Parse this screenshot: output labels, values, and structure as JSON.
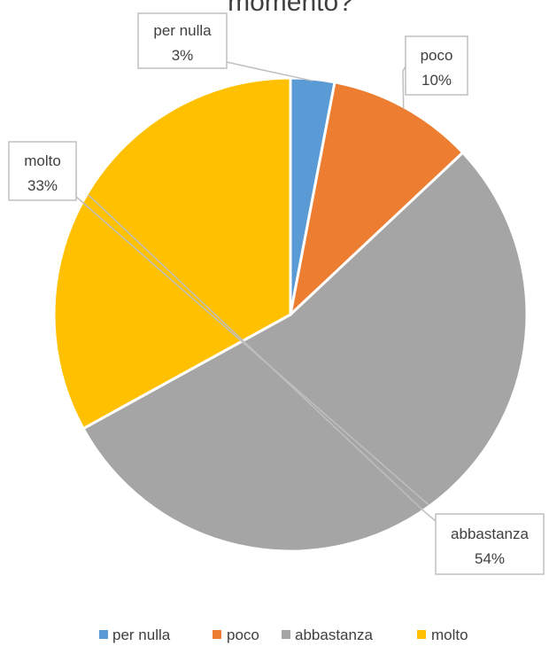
{
  "chart_data": {
    "type": "pie",
    "title": "momento?",
    "slices": [
      {
        "label": "per nulla",
        "value": 3,
        "value_label": "3%",
        "color": "#5B9BD5"
      },
      {
        "label": "poco",
        "value": 10,
        "value_label": "10%",
        "color": "#ED7D31"
      },
      {
        "label": "abbastanza",
        "value": 54,
        "value_label": "54%",
        "color": "#A5A5A5"
      },
      {
        "label": "molto",
        "value": 33,
        "value_label": "33%",
        "color": "#FFC000"
      }
    ],
    "legend_position": "bottom",
    "start_angle": "top, clockwise"
  }
}
